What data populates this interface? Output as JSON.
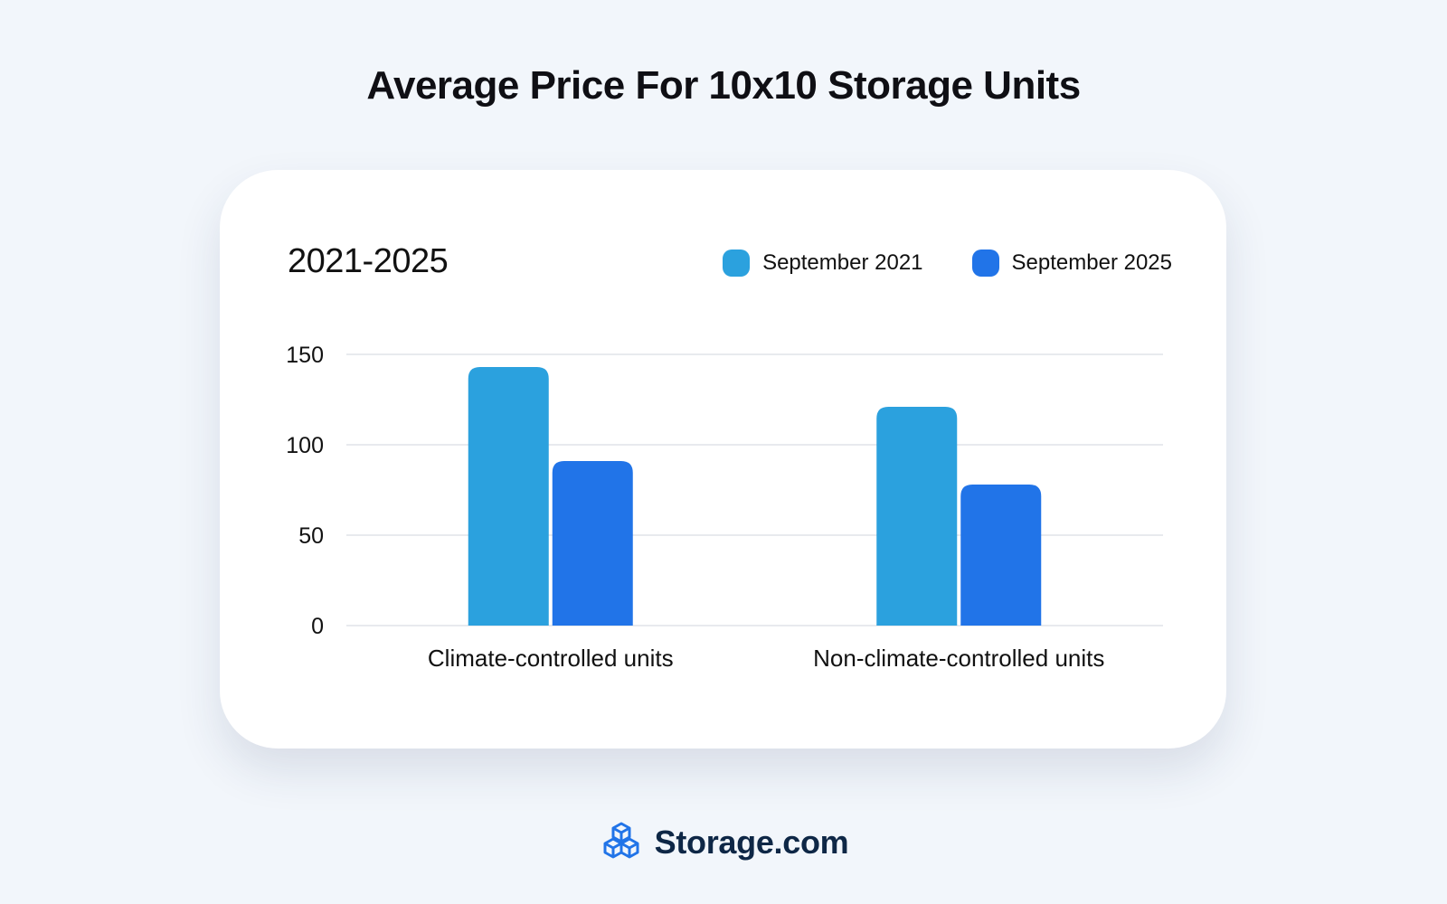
{
  "header": {
    "title": "Average Price For 10x10 Storage Units"
  },
  "chart_data": {
    "type": "bar",
    "title": "Average Price For 10x10 Storage Units",
    "subtitle": "2021-2025",
    "categories": [
      "Climate-controlled units",
      "Non-climate-controlled units"
    ],
    "series": [
      {
        "name": "September 2021",
        "values": [
          143,
          121
        ],
        "color": "#2ba1de"
      },
      {
        "name": "September 2025",
        "values": [
          91,
          78
        ],
        "color": "#2174e8"
      }
    ],
    "ylim": [
      0,
      150
    ],
    "yticks": [
      0,
      50,
      100,
      150
    ],
    "grid": true,
    "legend": "top-right",
    "xlabel": "",
    "ylabel": ""
  },
  "footer": {
    "brand": "Storage.com",
    "logo_icon": "cubes-icon",
    "brand_color": "#0e2746",
    "logo_color": "#2174e8"
  }
}
